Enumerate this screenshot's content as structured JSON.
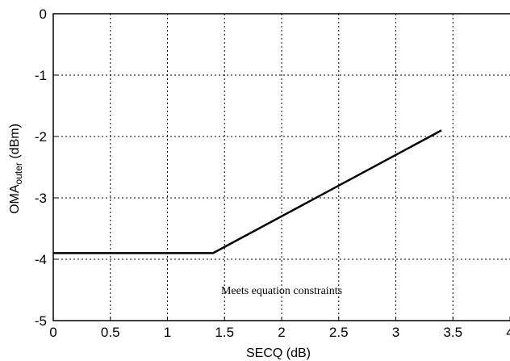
{
  "chart_data": {
    "type": "line",
    "xlabel": "SECQ (dB)",
    "ylabel_main": "OMA",
    "ylabel_sub": "outer",
    "ylabel_unit": "(dBm)",
    "xlim": [
      0,
      4
    ],
    "ylim": [
      -5,
      0
    ],
    "grid": true,
    "xticks": [
      "0",
      "0.5",
      "1",
      "1.5",
      "2",
      "2.5",
      "3",
      "3.5",
      "4"
    ],
    "yticks": [
      "0",
      "-1",
      "-2",
      "-3",
      "-4",
      "-5"
    ],
    "series": [
      {
        "x": [
          0,
          1.4,
          3.4
        ],
        "y": [
          -3.9,
          -3.9,
          -1.9
        ]
      }
    ],
    "annotations": [
      {
        "text": "Meets equation constraints",
        "x": 2.0,
        "y": -4.5
      }
    ]
  }
}
